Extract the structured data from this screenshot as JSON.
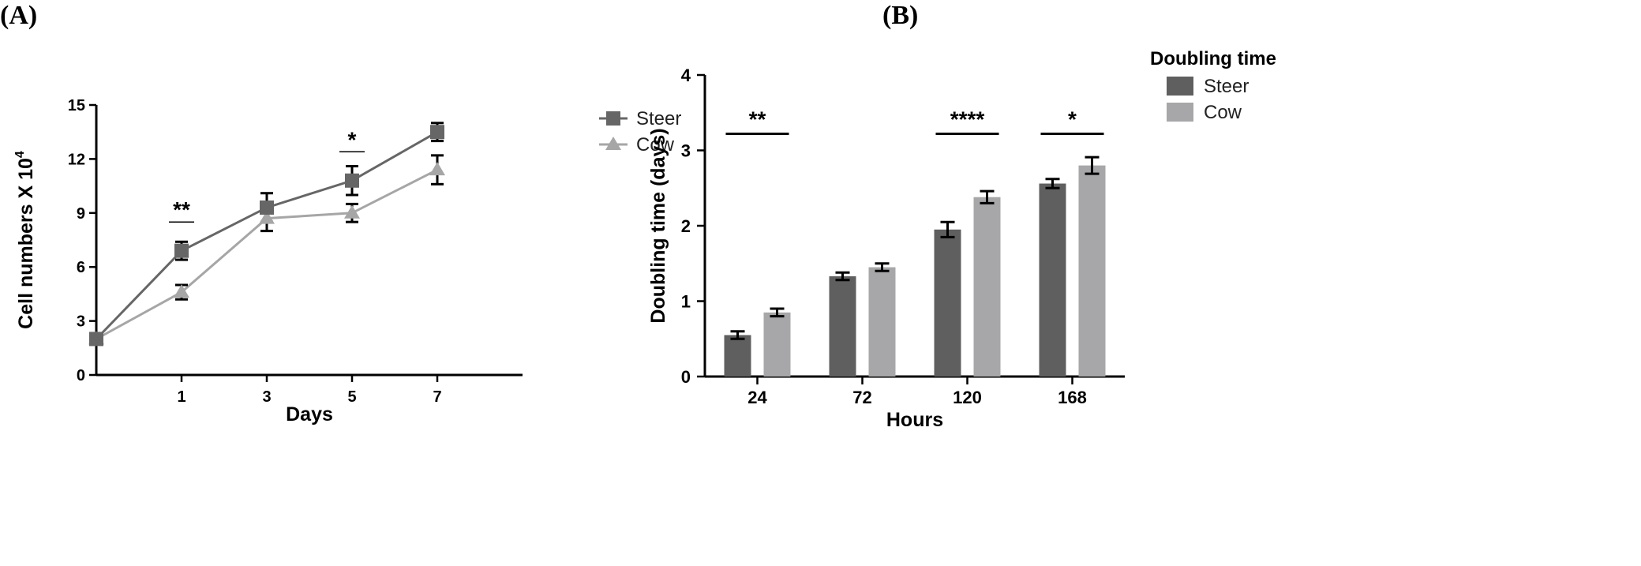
{
  "panels": {
    "a_label": "(A)",
    "b_label": "(B)"
  },
  "chart_data": [
    {
      "type": "line",
      "title": "",
      "xlabel": "Days",
      "ylabel_text": "Cell numbers X 10",
      "ylabel_exponent": "4",
      "x_ticks": [
        "1",
        "3",
        "5",
        "7"
      ],
      "x_tick_values": [
        1,
        3,
        5,
        7
      ],
      "xlim": [
        -1,
        9
      ],
      "y_ticks": [
        "0",
        "3",
        "6",
        "9",
        "12",
        "15"
      ],
      "ylim": [
        0,
        15
      ],
      "series": [
        {
          "name": "Steer",
          "marker": "square",
          "color": "#666666",
          "x": [
            -1,
            1,
            3,
            5,
            7
          ],
          "y": [
            2.0,
            6.9,
            9.3,
            10.8,
            13.5
          ],
          "err": [
            0.0,
            0.5,
            0.8,
            0.8,
            0.5
          ]
        },
        {
          "name": "Cow",
          "marker": "triangle",
          "color": "#a6a6a6",
          "x": [
            -1,
            1,
            3,
            5,
            7
          ],
          "y": [
            2.0,
            4.6,
            8.7,
            9.0,
            11.4
          ],
          "err": [
            0.0,
            0.4,
            0.7,
            0.5,
            0.8
          ]
        }
      ],
      "significance": [
        {
          "x": 1,
          "y": 8.5,
          "label": "**"
        },
        {
          "x": 5,
          "y": 12.4,
          "label": "*"
        }
      ],
      "legend_position": "right"
    },
    {
      "type": "bar",
      "title": "Doubling time",
      "xlabel": "Hours",
      "ylabel": "Doubling time (days)",
      "categories": [
        "24",
        "72",
        "120",
        "168"
      ],
      "y_ticks": [
        "0",
        "1",
        "2",
        "3",
        "4"
      ],
      "ylim": [
        0,
        4
      ],
      "series": [
        {
          "name": "Steer",
          "color": "#5f5f5f",
          "values": [
            0.55,
            1.33,
            1.95,
            2.56
          ],
          "err": [
            0.05,
            0.05,
            0.1,
            0.06
          ]
        },
        {
          "name": "Cow",
          "color": "#a7a7a9",
          "values": [
            0.85,
            1.45,
            2.38,
            2.8
          ],
          "err": [
            0.05,
            0.05,
            0.08,
            0.11
          ]
        }
      ],
      "significance": [
        {
          "category_index": 0,
          "y": 3.22,
          "label": "**"
        },
        {
          "category_index": 2,
          "y": 3.22,
          "label": "****"
        },
        {
          "category_index": 3,
          "y": 3.22,
          "label": "*"
        }
      ],
      "legend_position": "top-right"
    }
  ]
}
